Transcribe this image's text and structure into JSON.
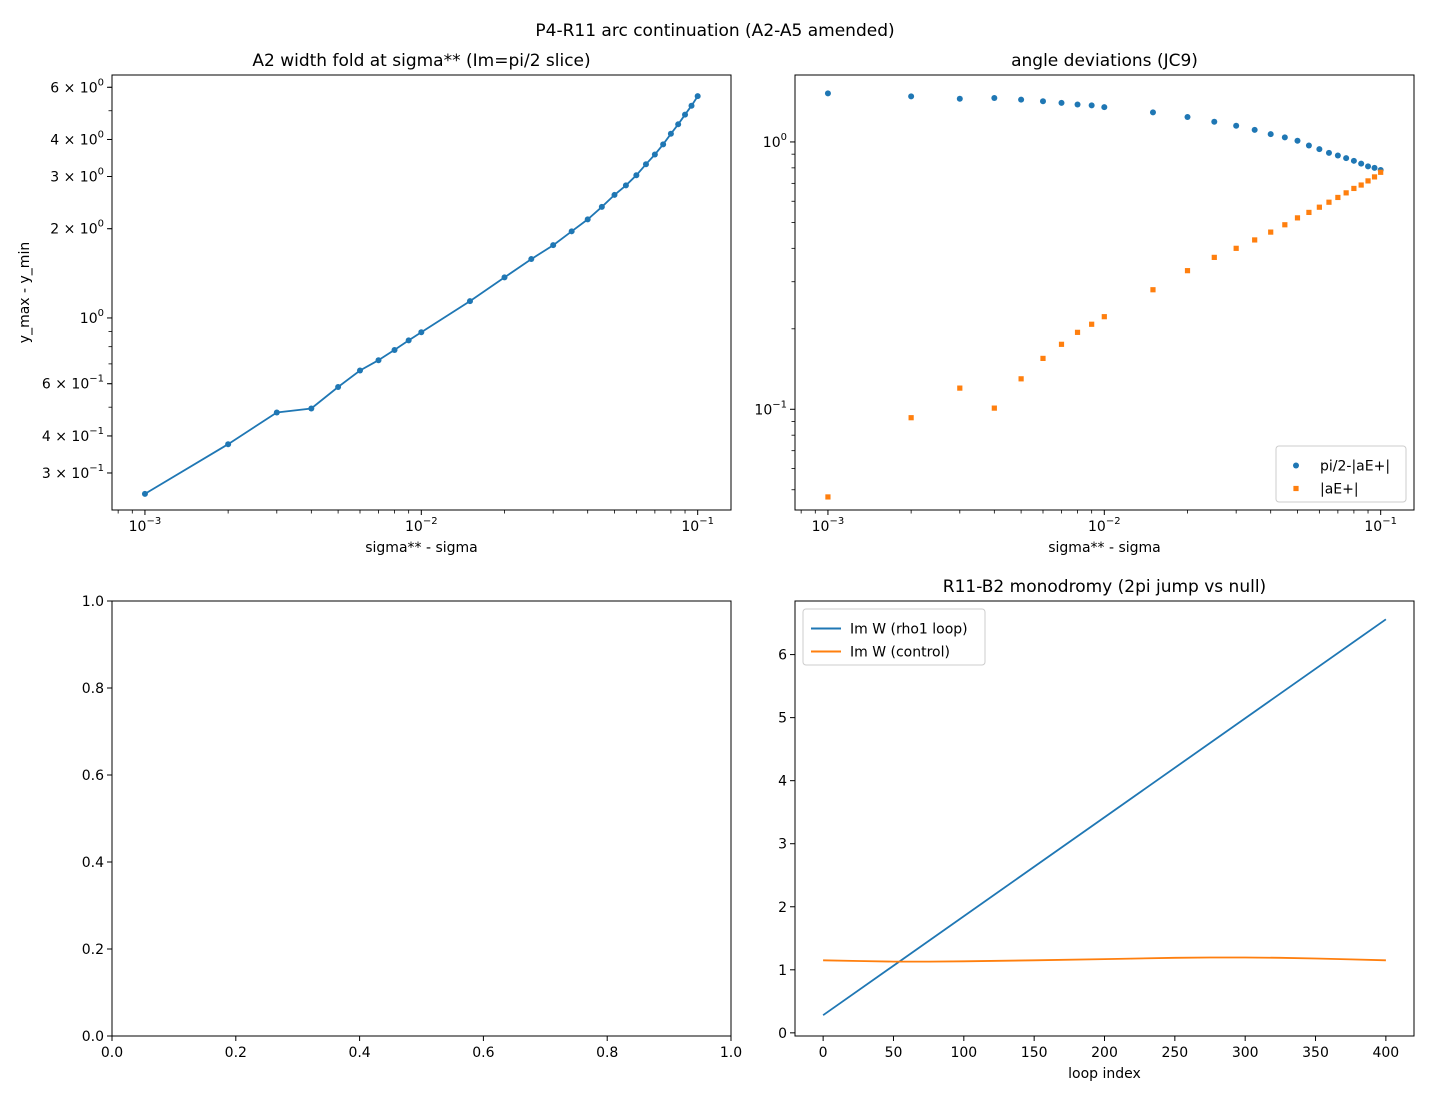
{
  "figure_title": "P4-R11 arc continuation (A2-A5 amended)",
  "colors": {
    "blue": "#1f77b4",
    "orange": "#ff7f0e"
  },
  "chart_data": [
    {
      "id": "a2",
      "type": "line",
      "title": "A2 width fold at sigma** (Im=pi/2 slice)",
      "xlabel": "sigma** - sigma",
      "ylabel": "y_max - y_min",
      "xscale": "log",
      "yscale": "log",
      "xlim": [
        0.00076,
        0.132
      ],
      "ylim": [
        0.225,
        6.6
      ],
      "xticks": [
        {
          "v": 0.001,
          "b": "10",
          "e": "−3"
        },
        {
          "v": 0.01,
          "b": "10",
          "e": "−2"
        },
        {
          "v": 0.1,
          "b": "10",
          "e": "−1"
        }
      ],
      "yticks": [
        {
          "v": 0.3,
          "b": "3 × 10",
          "e": "−1"
        },
        {
          "v": 0.4,
          "b": "4 × 10",
          "e": "−1"
        },
        {
          "v": 0.6,
          "b": "6 × 10",
          "e": "−1"
        },
        {
          "v": 1,
          "b": "10",
          "e": "0"
        },
        {
          "v": 2,
          "b": "2 × 10",
          "e": "0"
        },
        {
          "v": 3,
          "b": "3 × 10",
          "e": "0"
        },
        {
          "v": 4,
          "b": "4 × 10",
          "e": "0"
        },
        {
          "v": 6,
          "b": "6 × 10",
          "e": "0"
        }
      ],
      "series": [
        {
          "color": "#1f77b4",
          "x": [
            0.001,
            0.002,
            0.003,
            0.004,
            0.005,
            0.006,
            0.007,
            0.008,
            0.009,
            0.01,
            0.015,
            0.02,
            0.025,
            0.03,
            0.035,
            0.04,
            0.045,
            0.05,
            0.055,
            0.06,
            0.065,
            0.07,
            0.075,
            0.08,
            0.085,
            0.09,
            0.095,
            0.1
          ],
          "y": [
            0.255,
            0.375,
            0.48,
            0.495,
            0.585,
            0.665,
            0.72,
            0.78,
            0.84,
            0.895,
            1.14,
            1.37,
            1.58,
            1.76,
            1.96,
            2.15,
            2.37,
            2.6,
            2.8,
            3.03,
            3.3,
            3.56,
            3.85,
            4.18,
            4.5,
            4.85,
            5.2,
            5.6
          ]
        }
      ]
    },
    {
      "id": "jc9",
      "type": "scatter",
      "title": "angle deviations (JC9)",
      "xlabel": "sigma** - sigma",
      "ylabel": "",
      "xscale": "log",
      "yscale": "log",
      "xlim": [
        0.00076,
        0.132
      ],
      "ylim": [
        0.042,
        1.78
      ],
      "xticks": [
        {
          "v": 0.001,
          "b": "10",
          "e": "−3"
        },
        {
          "v": 0.01,
          "b": "10",
          "e": "−2"
        },
        {
          "v": 0.1,
          "b": "10",
          "e": "−1"
        }
      ],
      "yticks": [
        {
          "v": 0.1,
          "b": "10",
          "e": "−1"
        },
        {
          "v": 1,
          "b": "10",
          "e": "0"
        }
      ],
      "legend": {
        "placement": "lower-right",
        "entries": [
          "pi/2-|aE+|",
          "|aE+|"
        ]
      },
      "series": [
        {
          "name": "pi/2-|aE+|",
          "color": "#1f77b4",
          "marker": "circle",
          "x": [
            0.001,
            0.002,
            0.003,
            0.004,
            0.005,
            0.006,
            0.007,
            0.008,
            0.009,
            0.01,
            0.015,
            0.02,
            0.025,
            0.03,
            0.035,
            0.04,
            0.045,
            0.05,
            0.055,
            0.06,
            0.065,
            0.07,
            0.075,
            0.08,
            0.085,
            0.09,
            0.095,
            0.1
          ],
          "y": [
            1.52,
            1.48,
            1.45,
            1.46,
            1.44,
            1.42,
            1.4,
            1.38,
            1.37,
            1.35,
            1.29,
            1.24,
            1.19,
            1.15,
            1.11,
            1.07,
            1.04,
            1.01,
            0.97,
            0.94,
            0.91,
            0.89,
            0.87,
            0.85,
            0.83,
            0.81,
            0.8,
            0.785
          ]
        },
        {
          "name": "|aE+|",
          "color": "#ff7f0e",
          "marker": "square",
          "x": [
            0.001,
            0.002,
            0.003,
            0.004,
            0.005,
            0.006,
            0.007,
            0.008,
            0.009,
            0.01,
            0.015,
            0.02,
            0.025,
            0.03,
            0.035,
            0.04,
            0.045,
            0.05,
            0.055,
            0.06,
            0.065,
            0.07,
            0.075,
            0.08,
            0.085,
            0.09,
            0.095,
            0.1
          ],
          "y": [
            0.047,
            0.093,
            0.12,
            0.101,
            0.13,
            0.155,
            0.175,
            0.194,
            0.208,
            0.222,
            0.28,
            0.33,
            0.37,
            0.4,
            0.43,
            0.46,
            0.49,
            0.52,
            0.545,
            0.57,
            0.595,
            0.62,
            0.645,
            0.67,
            0.69,
            0.715,
            0.74,
            0.77
          ]
        }
      ]
    },
    {
      "id": "empty",
      "type": "line",
      "title": "",
      "xlabel": "",
      "ylabel": "",
      "xscale": "linear",
      "yscale": "linear",
      "xlim": [
        0,
        1
      ],
      "ylim": [
        0,
        1
      ],
      "xticks": [
        "0.0",
        "0.2",
        "0.4",
        "0.6",
        "0.8",
        "1.0"
      ],
      "yticks": [
        "0.0",
        "0.2",
        "0.4",
        "0.6",
        "0.8",
        "1.0"
      ],
      "series": []
    },
    {
      "id": "b2",
      "type": "line",
      "title": "R11-B2 monodromy (2pi jump vs null)",
      "xlabel": "loop index",
      "ylabel": "",
      "xscale": "linear",
      "yscale": "linear",
      "xlim": [
        -20,
        420
      ],
      "ylim": [
        -0.05,
        6.85
      ],
      "xticks": [
        "0",
        "50",
        "100",
        "150",
        "200",
        "250",
        "300",
        "350",
        "400"
      ],
      "yticks": [
        "0",
        "1",
        "2",
        "3",
        "4",
        "5",
        "6"
      ],
      "legend": {
        "placement": "upper-left",
        "entries": [
          "Im W (rho1 loop)",
          "Im W (control)"
        ]
      },
      "series": [
        {
          "name": "Im W (rho1 loop)",
          "color": "#1f77b4",
          "x": [
            0,
            400
          ],
          "y": [
            0.28,
            6.56
          ]
        },
        {
          "name": "Im W (control)",
          "color": "#ff7f0e",
          "x": [
            0,
            25,
            50,
            75,
            100,
            150,
            200,
            250,
            275,
            300,
            325,
            350,
            375,
            400
          ],
          "y": [
            1.15,
            1.14,
            1.13,
            1.13,
            1.135,
            1.15,
            1.17,
            1.19,
            1.195,
            1.195,
            1.19,
            1.18,
            1.165,
            1.15
          ]
        }
      ]
    }
  ]
}
